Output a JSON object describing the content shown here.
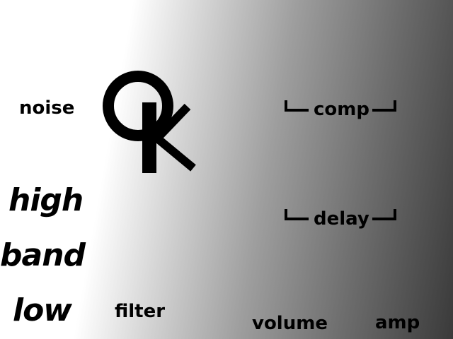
{
  "logo": {
    "alt": "OK"
  },
  "left": {
    "noise": "noise",
    "high": "high",
    "band": "band",
    "low": "low",
    "filter": "filter"
  },
  "right": {
    "comp": "comp",
    "delay": "delay",
    "volume": "volume",
    "amp": "amp"
  }
}
